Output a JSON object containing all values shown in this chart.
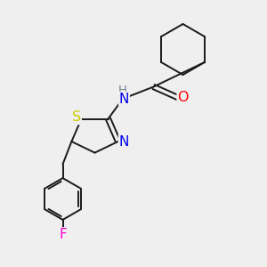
{
  "bg_color": "#efefef",
  "bond_color": "#1a1a1a",
  "bond_width": 1.4,
  "atom_colors": {
    "N": "#0000ee",
    "S": "#cccc00",
    "O": "#ff0000",
    "F": "#ff00cc",
    "H": "#708090",
    "C": "#1a1a1a"
  },
  "font_size_atoms": 10.5
}
